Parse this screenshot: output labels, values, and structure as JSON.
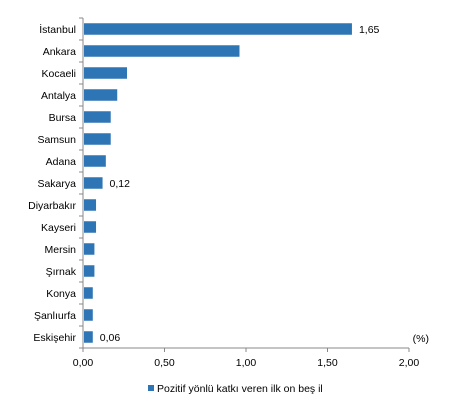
{
  "chart_data": {
    "type": "bar",
    "orientation": "horizontal",
    "categories": [
      "İstanbul",
      "Ankara",
      "Kocaeli",
      "Antalya",
      "Bursa",
      "Samsun",
      "Adana",
      "Sakarya",
      "Diyarbakır",
      "Kayseri",
      "Mersin",
      "Şırnak",
      "Konya",
      "Şanlıurfa",
      "Eskişehir"
    ],
    "series": [
      {
        "name": "Pozitif yönlü katkı veren ilk on beş il",
        "color": "#2E75B6",
        "values": [
          1.65,
          0.96,
          0.27,
          0.21,
          0.17,
          0.17,
          0.14,
          0.12,
          0.08,
          0.08,
          0.07,
          0.07,
          0.06,
          0.06,
          0.06
        ]
      }
    ],
    "data_labels": [
      {
        "category": "İstanbul",
        "text": "1,65"
      },
      {
        "category": "Sakarya",
        "text": "0,12"
      },
      {
        "category": "Eskişehir",
        "text": "0,06"
      }
    ],
    "x_ticks": [
      "0,00",
      "0,50",
      "1,00",
      "1,50",
      "2,00"
    ],
    "xlim": [
      0,
      2
    ],
    "unit_label": "(%)",
    "grid": false,
    "legend_position": "bottom"
  }
}
